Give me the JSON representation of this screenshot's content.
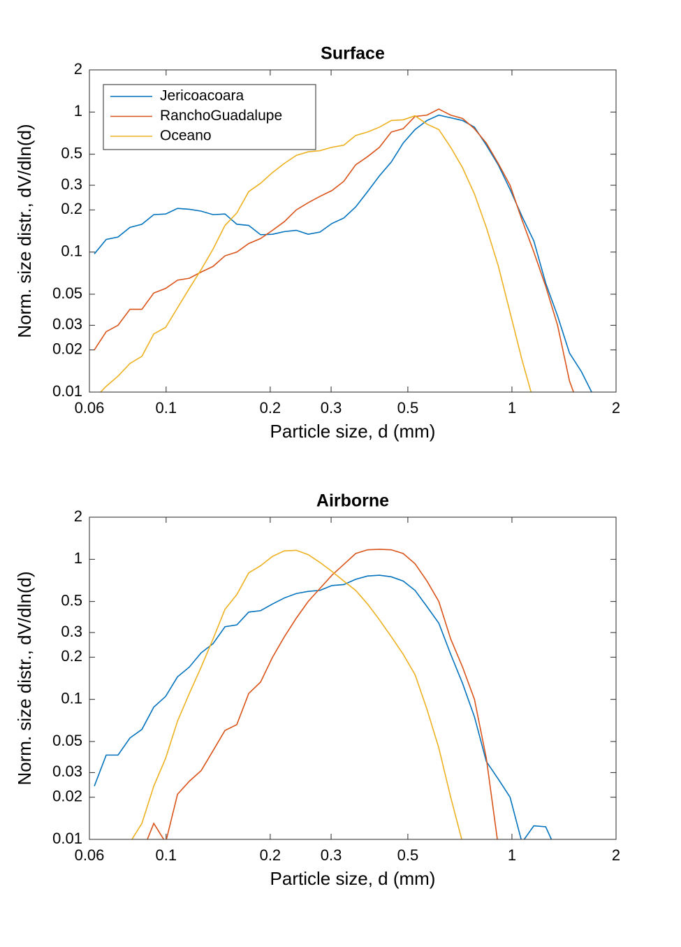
{
  "chart_data": [
    {
      "type": "line",
      "title": "Surface",
      "xlabel": "Particle size, d (mm)",
      "ylabel": "Norm. size distr., dV/dln(d)",
      "xscale": "log",
      "yscale": "log",
      "xlim": [
        0.06,
        2
      ],
      "ylim": [
        0.01,
        2
      ],
      "xticks": [
        0.06,
        0.1,
        0.2,
        0.3,
        0.5,
        1,
        2
      ],
      "yticks": [
        0.01,
        0.02,
        0.03,
        0.05,
        0.1,
        0.2,
        0.3,
        0.5,
        1,
        2
      ],
      "legend": "northwest",
      "x": [
        0.062,
        0.0671,
        0.0726,
        0.0786,
        0.0851,
        0.0921,
        0.0997,
        0.1079,
        0.1167,
        0.1263,
        0.1367,
        0.148,
        0.1601,
        0.1733,
        0.1876,
        0.2031,
        0.2198,
        0.2379,
        0.2575,
        0.2786,
        0.3016,
        0.3264,
        0.3533,
        0.3823,
        0.4138,
        0.4479,
        0.4847,
        0.5246,
        0.5678,
        0.6145,
        0.6651,
        0.7198,
        0.7791,
        0.8432,
        0.9126,
        0.9877,
        1.069,
        1.157,
        1.252,
        1.355,
        1.467,
        1.588,
        1.718
      ],
      "series": [
        {
          "name": "Jericoacoara",
          "color": "#0072bd",
          "values": [
            0.097,
            0.123,
            0.128,
            0.15,
            0.158,
            0.185,
            0.187,
            0.205,
            0.202,
            0.196,
            0.185,
            0.187,
            0.158,
            0.155,
            0.133,
            0.134,
            0.14,
            0.143,
            0.134,
            0.139,
            0.16,
            0.175,
            0.21,
            0.27,
            0.35,
            0.44,
            0.6,
            0.75,
            0.87,
            0.95,
            0.91,
            0.87,
            0.78,
            0.58,
            0.42,
            0.28,
            0.18,
            0.12,
            0.06,
            0.035,
            0.019,
            0.014,
            0.0095
          ]
        },
        {
          "name": "RanchoGuadalupe",
          "color": "#d95319",
          "values": [
            0.02,
            0.027,
            0.03,
            0.039,
            0.039,
            0.051,
            0.055,
            0.063,
            0.065,
            0.072,
            0.079,
            0.094,
            0.1,
            0.115,
            0.125,
            0.143,
            0.165,
            0.2,
            0.225,
            0.25,
            0.275,
            0.32,
            0.42,
            0.48,
            0.56,
            0.72,
            0.76,
            0.93,
            0.95,
            1.05,
            0.95,
            0.9,
            0.76,
            0.6,
            0.43,
            0.3,
            0.17,
            0.1,
            0.057,
            0.03,
            0.012,
            0.007,
            null
          ]
        },
        {
          "name": "Oceano",
          "color": "#edb120",
          "values": [
            0.009,
            0.011,
            0.013,
            0.016,
            0.018,
            0.026,
            0.029,
            0.04,
            0.055,
            0.075,
            0.105,
            0.155,
            0.19,
            0.27,
            0.31,
            0.37,
            0.43,
            0.49,
            0.52,
            0.53,
            0.56,
            0.58,
            0.68,
            0.72,
            0.78,
            0.87,
            0.88,
            0.94,
            0.82,
            0.75,
            0.56,
            0.4,
            0.26,
            0.15,
            0.08,
            0.037,
            0.017,
            0.0085,
            null,
            null,
            null,
            null,
            null
          ]
        }
      ]
    },
    {
      "type": "line",
      "title": "Airborne",
      "xlabel": "Particle size, d (mm)",
      "ylabel": "Norm. size distr., dV/dln(d)",
      "xscale": "log",
      "yscale": "log",
      "xlim": [
        0.06,
        2
      ],
      "ylim": [
        0.01,
        2
      ],
      "xticks": [
        0.06,
        0.1,
        0.2,
        0.3,
        0.5,
        1,
        2
      ],
      "yticks": [
        0.01,
        0.02,
        0.03,
        0.05,
        0.1,
        0.2,
        0.3,
        0.5,
        1,
        2
      ],
      "x": [
        0.062,
        0.0671,
        0.0726,
        0.0786,
        0.0851,
        0.0921,
        0.0997,
        0.1079,
        0.1167,
        0.1263,
        0.1367,
        0.148,
        0.1601,
        0.1733,
        0.1876,
        0.2031,
        0.2198,
        0.2379,
        0.2575,
        0.2786,
        0.3016,
        0.3264,
        0.3533,
        0.3823,
        0.4138,
        0.4479,
        0.4847,
        0.5246,
        0.5678,
        0.6145,
        0.6651,
        0.7198,
        0.7791,
        0.8432,
        0.9126,
        0.9877,
        1.069,
        1.157,
        1.252,
        1.355,
        1.467,
        1.588,
        1.718
      ],
      "series": [
        {
          "color": "#0072bd",
          "values": [
            0.024,
            0.04,
            0.04,
            0.053,
            0.061,
            0.088,
            0.105,
            0.145,
            0.17,
            0.215,
            0.25,
            0.33,
            0.34,
            0.42,
            0.43,
            0.48,
            0.53,
            0.57,
            0.59,
            0.6,
            0.65,
            0.66,
            0.72,
            0.76,
            0.77,
            0.75,
            0.7,
            0.6,
            0.46,
            0.35,
            0.21,
            0.13,
            0.075,
            0.036,
            0.027,
            0.02,
            0.0095,
            0.0125,
            0.0123,
            0.008,
            null,
            null,
            null
          ]
        },
        {
          "color": "#d95319",
          "values": [
            null,
            null,
            null,
            null,
            0.008,
            0.013,
            0.0095,
            0.021,
            0.026,
            0.031,
            0.043,
            0.06,
            0.066,
            0.11,
            0.133,
            0.2,
            0.28,
            0.38,
            0.5,
            0.62,
            0.77,
            0.92,
            1.1,
            1.17,
            1.18,
            1.17,
            1.1,
            0.93,
            0.7,
            0.5,
            0.27,
            0.17,
            0.1,
            0.038,
            0.009,
            null,
            null,
            null,
            null,
            null,
            null,
            null,
            null
          ]
        },
        {
          "color": "#edb120",
          "values": [
            null,
            null,
            null,
            0.0095,
            0.013,
            0.024,
            0.038,
            0.07,
            0.11,
            0.17,
            0.27,
            0.44,
            0.56,
            0.8,
            0.9,
            1.05,
            1.15,
            1.16,
            1.08,
            0.95,
            0.82,
            0.7,
            0.6,
            0.48,
            0.37,
            0.28,
            0.21,
            0.15,
            0.085,
            0.045,
            0.02,
            0.0095,
            null,
            null,
            null,
            null,
            null,
            null,
            null,
            null,
            null,
            null,
            null
          ]
        }
      ]
    }
  ]
}
